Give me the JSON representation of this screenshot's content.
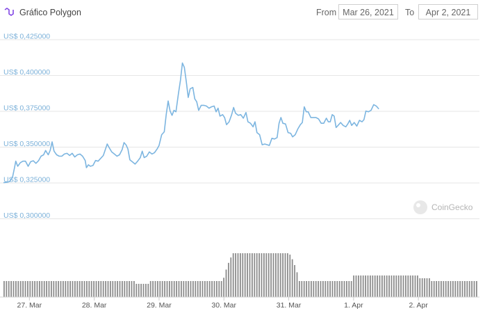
{
  "header": {
    "title": "Gráfico Polygon",
    "from_label": "From",
    "from_date": "Mar 26, 2021",
    "to_label": "To",
    "to_date": "Apr 2, 2021"
  },
  "watermark": "CoinGecko",
  "colors": {
    "line": "#7cb5e0",
    "volume": "#8c8c8c",
    "grid": "#e6e6e6",
    "axis_label": "#7cb1d9"
  },
  "chart_data": {
    "type": "line",
    "title": "Gráfico Polygon",
    "ylim": [
      0.3,
      0.425
    ],
    "yticks": [
      0.3,
      0.325,
      0.35,
      0.375,
      0.4,
      0.425
    ],
    "ytick_labels": [
      "US$ 0,300000",
      "US$ 0,325000",
      "US$ 0,350000",
      "US$ 0,375000",
      "US$ 0,400000",
      "US$ 0,425000"
    ],
    "xlim": [
      26.6,
      33.92
    ],
    "xticks": [
      27,
      28,
      29,
      30,
      31,
      32,
      33
    ],
    "xtick_labels": [
      "27. Mar",
      "28. Mar",
      "29. Mar",
      "30. Mar",
      "31. Mar",
      "1. Apr",
      "2. Apr"
    ],
    "grid": true,
    "series": [
      {
        "values": [
          [
            26.6,
            0.3225
          ],
          [
            26.66,
            0.3228
          ],
          [
            26.7,
            0.3235
          ],
          [
            26.74,
            0.3265
          ],
          [
            26.77,
            0.333
          ],
          [
            26.79,
            0.3375
          ],
          [
            26.82,
            0.334
          ],
          [
            26.86,
            0.3365
          ],
          [
            26.9,
            0.3375
          ],
          [
            26.94,
            0.3375
          ],
          [
            26.98,
            0.334
          ],
          [
            27.02,
            0.3372
          ],
          [
            27.06,
            0.3378
          ],
          [
            27.1,
            0.336
          ],
          [
            27.14,
            0.3378
          ],
          [
            27.18,
            0.341
          ],
          [
            27.22,
            0.342
          ],
          [
            27.25,
            0.345
          ],
          [
            27.29,
            0.342
          ],
          [
            27.32,
            0.345
          ],
          [
            27.35,
            0.351
          ],
          [
            27.38,
            0.3445
          ],
          [
            27.42,
            0.342
          ],
          [
            27.46,
            0.341
          ],
          [
            27.5,
            0.341
          ],
          [
            27.54,
            0.3425
          ],
          [
            27.58,
            0.343
          ],
          [
            27.62,
            0.3415
          ],
          [
            27.66,
            0.343
          ],
          [
            27.7,
            0.3405
          ],
          [
            27.74,
            0.342
          ],
          [
            27.78,
            0.3425
          ],
          [
            27.82,
            0.341
          ],
          [
            27.86,
            0.338
          ],
          [
            27.88,
            0.333
          ],
          [
            27.91,
            0.335
          ],
          [
            27.94,
            0.334
          ],
          [
            27.98,
            0.3345
          ],
          [
            28.02,
            0.338
          ],
          [
            28.06,
            0.3375
          ],
          [
            28.1,
            0.3395
          ],
          [
            28.14,
            0.3415
          ],
          [
            28.17,
            0.3455
          ],
          [
            28.2,
            0.3495
          ],
          [
            28.23,
            0.347
          ],
          [
            28.27,
            0.344
          ],
          [
            28.31,
            0.3425
          ],
          [
            28.35,
            0.341
          ],
          [
            28.39,
            0.342
          ],
          [
            28.43,
            0.3455
          ],
          [
            28.46,
            0.3505
          ],
          [
            28.49,
            0.349
          ],
          [
            28.52,
            0.346
          ],
          [
            28.55,
            0.3385
          ],
          [
            28.59,
            0.337
          ],
          [
            28.63,
            0.3355
          ],
          [
            28.67,
            0.3375
          ],
          [
            28.71,
            0.34
          ],
          [
            28.74,
            0.3445
          ],
          [
            28.77,
            0.34
          ],
          [
            28.81,
            0.341
          ],
          [
            28.85,
            0.344
          ],
          [
            28.89,
            0.3425
          ],
          [
            28.93,
            0.3435
          ],
          [
            28.97,
            0.346
          ],
          [
            29.0,
            0.3485
          ],
          [
            29.04,
            0.356
          ],
          [
            29.08,
            0.358
          ],
          [
            29.11,
            0.37
          ],
          [
            29.14,
            0.3795
          ],
          [
            29.17,
            0.3725
          ],
          [
            29.2,
            0.3695
          ],
          [
            29.23,
            0.373
          ],
          [
            29.26,
            0.372
          ],
          [
            29.3,
            0.385
          ],
          [
            29.33,
            0.394
          ],
          [
            29.36,
            0.406
          ],
          [
            29.39,
            0.403
          ],
          [
            29.42,
            0.393
          ],
          [
            29.45,
            0.382
          ],
          [
            29.48,
            0.388
          ],
          [
            29.52,
            0.389
          ],
          [
            29.55,
            0.381
          ],
          [
            29.58,
            0.379
          ],
          [
            29.61,
            0.373
          ],
          [
            29.65,
            0.3765
          ],
          [
            29.69,
            0.3765
          ],
          [
            29.73,
            0.376
          ],
          [
            29.77,
            0.3745
          ],
          [
            29.81,
            0.3755
          ],
          [
            29.85,
            0.376
          ],
          [
            29.88,
            0.372
          ],
          [
            29.91,
            0.3745
          ],
          [
            29.94,
            0.369
          ],
          [
            29.98,
            0.37
          ],
          [
            30.01,
            0.368
          ],
          [
            30.04,
            0.363
          ],
          [
            30.08,
            0.365
          ],
          [
            30.12,
            0.37
          ],
          [
            30.15,
            0.375
          ],
          [
            30.18,
            0.371
          ],
          [
            30.22,
            0.3695
          ],
          [
            30.26,
            0.37
          ],
          [
            30.3,
            0.3675
          ],
          [
            30.34,
            0.3715
          ],
          [
            30.37,
            0.365
          ],
          [
            30.41,
            0.364
          ],
          [
            30.45,
            0.3615
          ],
          [
            30.48,
            0.365
          ],
          [
            30.51,
            0.3575
          ],
          [
            30.55,
            0.356
          ],
          [
            30.59,
            0.349
          ],
          [
            30.63,
            0.3495
          ],
          [
            30.67,
            0.349
          ],
          [
            30.7,
            0.3485
          ],
          [
            30.74,
            0.3535
          ],
          [
            30.78,
            0.353
          ],
          [
            30.82,
            0.354
          ],
          [
            30.85,
            0.364
          ],
          [
            30.88,
            0.368
          ],
          [
            30.91,
            0.364
          ],
          [
            30.95,
            0.3635
          ],
          [
            30.99,
            0.3575
          ],
          [
            31.03,
            0.357
          ],
          [
            31.06,
            0.3545
          ],
          [
            31.1,
            0.356
          ],
          [
            31.14,
            0.36
          ],
          [
            31.18,
            0.363
          ],
          [
            31.21,
            0.3645
          ],
          [
            31.24,
            0.3755
          ],
          [
            31.27,
            0.372
          ],
          [
            31.3,
            0.372
          ],
          [
            31.34,
            0.368
          ],
          [
            31.38,
            0.368
          ],
          [
            31.42,
            0.368
          ],
          [
            31.46,
            0.367
          ],
          [
            31.5,
            0.364
          ],
          [
            31.54,
            0.364
          ],
          [
            31.58,
            0.3675
          ],
          [
            31.61,
            0.365
          ],
          [
            31.64,
            0.365
          ],
          [
            31.67,
            0.37
          ],
          [
            31.7,
            0.369
          ],
          [
            31.73,
            0.361
          ],
          [
            31.76,
            0.3625
          ],
          [
            31.8,
            0.3645
          ],
          [
            31.84,
            0.3625
          ],
          [
            31.88,
            0.3615
          ],
          [
            31.91,
            0.3635
          ],
          [
            31.94,
            0.366
          ],
          [
            31.97,
            0.3625
          ],
          [
            32.01,
            0.3645
          ],
          [
            32.05,
            0.362
          ],
          [
            32.09,
            0.366
          ],
          [
            32.13,
            0.365
          ],
          [
            32.16,
            0.3665
          ],
          [
            32.19,
            0.3725
          ],
          [
            32.23,
            0.372
          ],
          [
            32.27,
            0.373
          ],
          [
            32.31,
            0.377
          ],
          [
            32.35,
            0.376
          ],
          [
            32.39,
            0.374
          ]
        ]
      }
    ]
  }
}
